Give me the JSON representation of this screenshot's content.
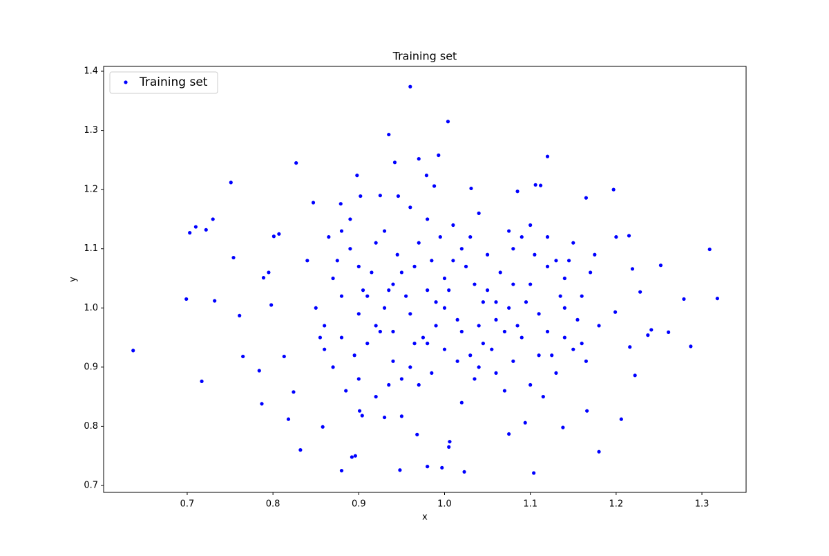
{
  "chart_data": {
    "type": "scatter",
    "title": "Training set",
    "x_label": "x",
    "y_label": "y",
    "legend": "upper left",
    "xlim": [
      0.6026,
      1.3515
    ],
    "ylim": [
      0.6883,
      1.4082
    ],
    "xticks": [
      0.7,
      0.8,
      0.9,
      {
        "value": 1,
        "label": "1.0"
      },
      1.1,
      1.2,
      1.3
    ],
    "yticks": [
      0.7,
      0.8,
      0.9,
      {
        "value": 1,
        "label": "1.0"
      },
      1.1,
      1.2,
      1.3,
      1.4
    ],
    "x": [
      0.637,
      0.699,
      0.703,
      0.71,
      0.717,
      0.722,
      0.73,
      0.732,
      0.751,
      0.754,
      0.761,
      0.765,
      0.784,
      0.787,
      0.789,
      0.795,
      0.798,
      0.801,
      0.807,
      0.813,
      0.818,
      0.824,
      0.827,
      0.832,
      0.858,
      0.88,
      0.892,
      0.896,
      0.898,
      0.935,
      0.942,
      0.948,
      0.96,
      0.97,
      0.98,
      0.997,
      1.004,
      1.005,
      1.023,
      1.104,
      1.12,
      1.138,
      1.18,
      1.197,
      1.206,
      1.222,
      1.252,
      1.261,
      1.279,
      1.287,
      1.309,
      1.318,
      1.165,
      1.106,
      1.112,
      1.085,
      1.031,
      0.988,
      0.993,
      0.979,
      0.946,
      0.925,
      0.902,
      0.847,
      0.879,
      1.228,
      1.237,
      1.241,
      1.216,
      1.199,
      1.2,
      1.215,
      1.219,
      1.166,
      1.094,
      1.075,
      1.006,
      0.968,
      0.95,
      0.93,
      0.904,
      0.901,
      0.87,
      0.88,
      0.89,
      0.9,
      0.91,
      0.92,
      0.93,
      0.94,
      0.95,
      0.96,
      0.97,
      0.98,
      0.99,
      1.0,
      1.01,
      1.02,
      1.03,
      1.04,
      1.05,
      1.06,
      1.07,
      1.08,
      1.09,
      1.1,
      1.11,
      1.12,
      1.13,
      1.14,
      1.15,
      1.16,
      0.86,
      0.88,
      0.9,
      0.92,
      0.94,
      0.96,
      0.98,
      1.0,
      1.02,
      1.04,
      1.06,
      1.08,
      1.1,
      1.12,
      1.14,
      1.16,
      1.18,
      0.85,
      0.87,
      0.89,
      0.91,
      0.93,
      0.95,
      0.97,
      0.99,
      1.01,
      1.03,
      1.05,
      1.07,
      1.09,
      1.11,
      1.13,
      1.15,
      1.17,
      0.84,
      0.86,
      0.88,
      0.9,
      0.92,
      0.94,
      0.96,
      0.98,
      1.0,
      1.02,
      1.04,
      1.06,
      1.08,
      1.1,
      1.12,
      1.14,
      0.855,
      0.875,
      0.895,
      0.915,
      0.935,
      0.955,
      0.975,
      0.995,
      1.015,
      1.035,
      1.055,
      1.075,
      1.095,
      1.115,
      1.135,
      1.155,
      1.175,
      0.865,
      0.885,
      0.905,
      0.925,
      0.945,
      0.965,
      0.985,
      1.005,
      1.025,
      1.045,
      1.065,
      1.085,
      1.105,
      1.125,
      1.145,
      1.165,
      0.935,
      0.965,
      1.015,
      1.045,
      1.075,
      1.035,
      0.985
    ],
    "series": [
      {
        "name": "Training set",
        "color": "#0000ff",
        "values": [
          0.928,
          1.015,
          1.127,
          1.137,
          0.876,
          1.132,
          1.15,
          1.012,
          1.212,
          1.085,
          0.987,
          0.918,
          0.894,
          0.838,
          1.051,
          1.06,
          1.005,
          1.121,
          1.125,
          0.918,
          0.812,
          0.858,
          1.245,
          0.76,
          0.799,
          0.725,
          0.748,
          0.75,
          1.224,
          1.293,
          1.246,
          0.726,
          1.374,
          1.252,
          0.732,
          0.73,
          1.315,
          0.765,
          0.723,
          0.721,
          1.256,
          0.798,
          0.757,
          1.2,
          0.812,
          0.886,
          1.072,
          0.959,
          1.015,
          0.935,
          1.099,
          1.016,
          1.186,
          1.208,
          1.207,
          1.197,
          1.202,
          1.206,
          1.258,
          1.224,
          1.189,
          1.19,
          1.189,
          1.178,
          1.176,
          1.027,
          0.954,
          0.963,
          0.934,
          0.993,
          1.12,
          1.122,
          1.066,
          0.826,
          0.806,
          0.787,
          0.774,
          0.786,
          0.817,
          0.815,
          0.818,
          0.826,
          1.05,
          0.95,
          1.1,
          0.88,
          1.02,
          0.97,
          1.13,
          0.91,
          1.06,
          0.99,
          0.87,
          1.15,
          1.01,
          0.93,
          1.08,
          0.96,
          1.12,
          0.9,
          1.03,
          0.98,
          0.86,
          1.1,
          0.95,
          1.04,
          0.92,
          1.07,
          0.89,
          1.0,
          1.11,
          0.94,
          0.93,
          1.13,
          0.99,
          0.85,
          1.04,
          1.17,
          0.94,
          1.05,
          0.84,
          1.16,
          1.01,
          0.91,
          1.14,
          0.96,
          1.05,
          1.02,
          0.97,
          1.0,
          0.9,
          1.15,
          0.94,
          1.0,
          0.88,
          1.11,
          0.97,
          1.14,
          0.92,
          1.09,
          0.96,
          1.12,
          0.99,
          1.08,
          0.93,
          1.06,
          1.08,
          0.97,
          1.02,
          1.07,
          1.11,
          0.96,
          0.9,
          1.03,
          1.0,
          1.1,
          0.97,
          0.89,
          1.04,
          0.87,
          1.12,
          0.95,
          0.95,
          1.08,
          0.92,
          1.06,
          0.87,
          1.02,
          0.95,
          1.12,
          0.98,
          1.04,
          0.93,
          1.13,
          1.01,
          0.85,
          1.02,
          0.98,
          1.09,
          1.12,
          0.86,
          1.03,
          0.96,
          1.09,
          0.94,
          0.89,
          1.03,
          1.07,
          1.01,
          1.06,
          0.97,
          1.09,
          0.92,
          1.08,
          0.91,
          1.03,
          1.07,
          0.91,
          0.94,
          1.0,
          0.88,
          1.08
        ]
      }
    ]
  }
}
